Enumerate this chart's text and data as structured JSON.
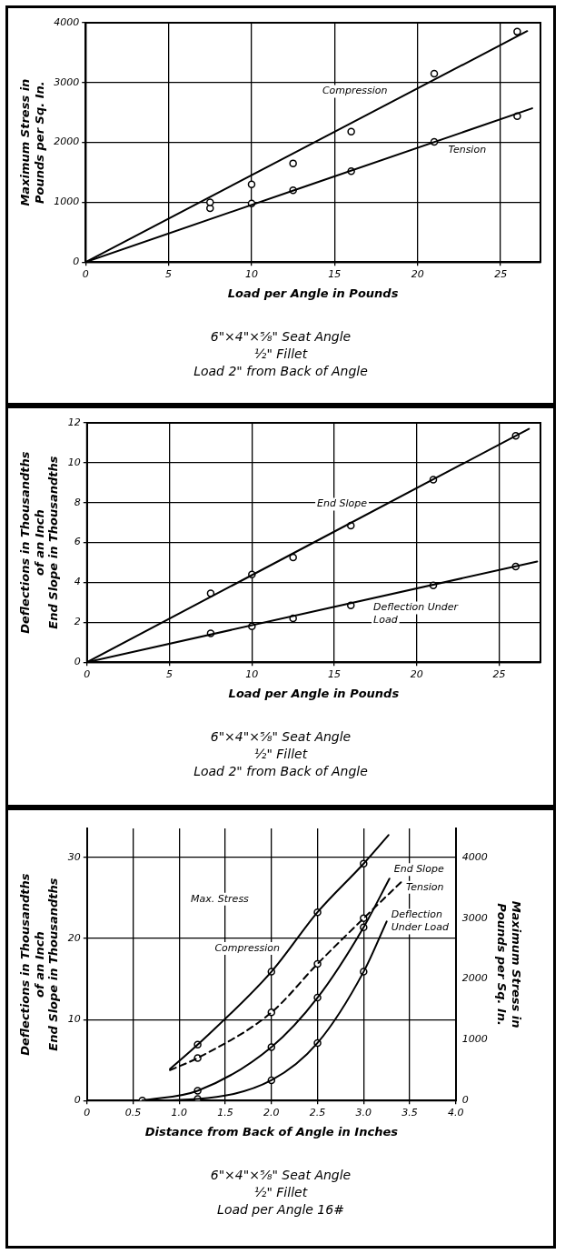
{
  "chart_data": [
    {
      "type": "line",
      "xlabel": "Load per Angle in Pounds",
      "ylabel": "Maximum Stress in\nPounds per Sq. In.",
      "xlim": [
        0,
        27.4
      ],
      "xticks": [
        0,
        5,
        10,
        15,
        20,
        25
      ],
      "ylim": [
        0,
        4000
      ],
      "yticks": [
        0,
        1000,
        2000,
        3000,
        4000
      ],
      "grid": true,
      "marker": "circle",
      "annotations": [
        "6\"×4\"×⅝\" Seat Angle",
        "½\" Fillet",
        "Load 2\" from Back of Angle"
      ],
      "series": [
        {
          "name": "Compression",
          "type": "line",
          "marker": "none",
          "color": "#000000",
          "x": [
            0,
            26.6
          ],
          "values": [
            0,
            3860
          ]
        },
        {
          "name": "Tension",
          "type": "line",
          "marker": "none",
          "color": "#000000",
          "x": [
            0,
            26.9
          ],
          "values": [
            0,
            2570
          ]
        },
        {
          "type": "scatter",
          "color": "#000000",
          "x": [
            7.5,
            10,
            12.5,
            16,
            21,
            26
          ],
          "values": [
            1000,
            1300,
            1650,
            2180,
            3150,
            3850
          ]
        },
        {
          "type": "scatter",
          "color": "#000000",
          "x": [
            7.5,
            10,
            12.5,
            16,
            21,
            26
          ],
          "values": [
            900,
            980,
            1200,
            1520,
            2010,
            2440
          ]
        }
      ]
    },
    {
      "type": "line",
      "xlabel": "Load per Angle in Pounds",
      "ylabel": "Deflections in Thousandths\nof an Inch\nEnd Slope in Thousandths",
      "xlim": [
        0,
        27.5
      ],
      "xticks": [
        0,
        5,
        10,
        15,
        20,
        25
      ],
      "ylim": [
        0,
        12
      ],
      "yticks": [
        0,
        2,
        4,
        6,
        8,
        10,
        12
      ],
      "grid": true,
      "marker": "circle",
      "annotations": [
        "6\"×4\"×⅝\" Seat Angle",
        "½\" Fillet",
        "Load 2\" from Back of Angle"
      ],
      "series": [
        {
          "name": "End Slope",
          "type": "line",
          "marker": "none",
          "color": "#000000",
          "x": [
            0,
            26.8
          ],
          "values": [
            0,
            11.7
          ]
        },
        {
          "name": "Deflection Under Load",
          "type": "line",
          "marker": "none",
          "color": "#000000",
          "x": [
            0,
            27.3
          ],
          "values": [
            0,
            5.05
          ]
        },
        {
          "type": "scatter",
          "color": "#000000",
          "x": [
            7.5,
            10,
            12.5,
            16,
            21,
            26
          ],
          "values": [
            3.45,
            4.4,
            5.25,
            6.85,
            9.15,
            11.35
          ]
        },
        {
          "type": "scatter",
          "color": "#000000",
          "x": [
            7.5,
            10,
            12.5,
            16,
            21,
            26
          ],
          "values": [
            1.45,
            1.8,
            2.2,
            2.85,
            3.85,
            4.8
          ]
        }
      ]
    },
    {
      "type": "line",
      "xlabel": "Distance from Back of Angle in Inches",
      "ylabel": "Deflections in Thousandths\nof an Inch\nEnd Slope in Thousandths",
      "y2label": "Maximum Stress in\nPounds per Sq. In.",
      "xlim": [
        0,
        4
      ],
      "xticks": [
        0,
        0.5,
        {
          "value": 1,
          "label": "1.0"
        },
        1.5,
        {
          "value": 2,
          "label": "2.0"
        },
        2.5,
        {
          "value": 3,
          "label": "3.0"
        },
        3.5,
        {
          "value": 4,
          "label": "4.0"
        }
      ],
      "ylim": [
        0,
        33.6
      ],
      "yticks": [
        0,
        10,
        20,
        30
      ],
      "y2lim": [
        0,
        4480
      ],
      "y2ticks": [
        0,
        1000,
        2000,
        3000,
        4000
      ],
      "grid": true,
      "marker": "circle",
      "annotations": [
        "Max. Stress",
        "6\"×4\"×⅝\" Seat Angle",
        "½\" Fillet",
        "Load per Angle 16#"
      ],
      "series": [
        {
          "name": "Compression",
          "type": "line",
          "marker": "none",
          "axis": "y2",
          "color": "#000000",
          "x": [
            0.9,
            1.2,
            2,
            2.5,
            3,
            3.27
          ],
          "values": [
            520,
            920,
            2120,
            3100,
            3900,
            4370
          ]
        },
        {
          "name": "Tension",
          "type": "line",
          "marker": "none",
          "line_style": "dashed",
          "axis": "y2",
          "color": "#000000",
          "x": [
            0.9,
            1.2,
            2,
            2.5,
            3,
            3.41
          ],
          "values": [
            500,
            700,
            1450,
            2250,
            3000,
            3600
          ]
        },
        {
          "name": "End Slope",
          "type": "line",
          "marker": "none",
          "color": "#000000",
          "x": [
            0.6,
            1.2,
            2,
            2.5,
            3,
            3.28
          ],
          "values": [
            0,
            1.2,
            6.6,
            12.7,
            21.4,
            27.4
          ]
        },
        {
          "name": "Deflection Under Load",
          "type": "line",
          "marker": "none",
          "color": "#000000",
          "x": [
            0.6,
            1.2,
            2,
            2.5,
            3,
            3.25
          ],
          "values": [
            0,
            0.2,
            2.5,
            7.1,
            15.9,
            22.1
          ]
        },
        {
          "type": "scatter",
          "axis": "y2",
          "color": "#000000",
          "x": [
            1.2,
            2,
            2.5,
            3
          ],
          "values": [
            920,
            2120,
            3100,
            3900
          ]
        },
        {
          "type": "scatter",
          "axis": "y2",
          "color": "#000000",
          "x": [
            1.2,
            2,
            2.5,
            3
          ],
          "values": [
            700,
            1450,
            2250,
            3000
          ]
        },
        {
          "type": "scatter",
          "color": "#000000",
          "x": [
            1.2,
            2,
            2.5,
            3
          ],
          "values": [
            1.2,
            6.6,
            12.7,
            21.4
          ]
        },
        {
          "type": "scatter",
          "color": "#000000",
          "x": [
            0.6,
            1.2,
            2,
            2.5,
            3
          ],
          "values": [
            0,
            0.2,
            2.5,
            7.1,
            15.9
          ]
        }
      ]
    }
  ]
}
